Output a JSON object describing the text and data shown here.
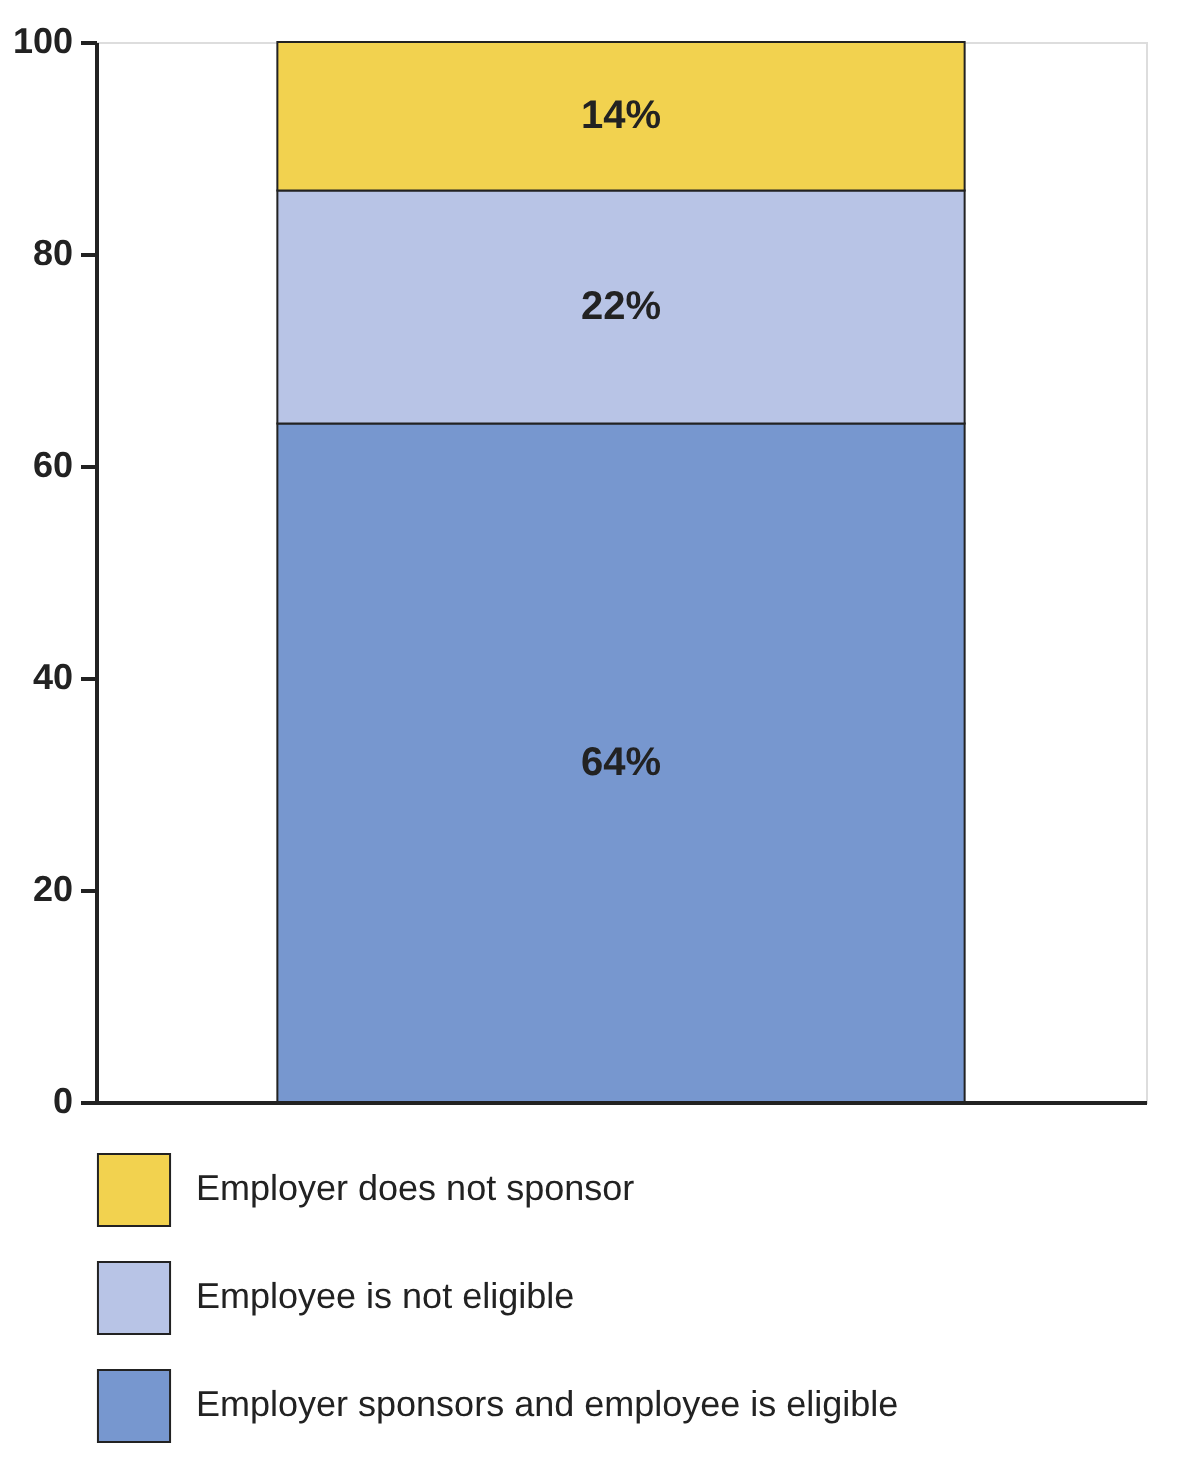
{
  "chart_data": {
    "type": "bar",
    "stacked": true,
    "categories": [
      null
    ],
    "series": [
      {
        "name": "Employer sponsors and employee is eligible",
        "color": "#7797cf",
        "values": [
          64
        ],
        "value_labels": [
          "64%"
        ]
      },
      {
        "name": "Employee is not eligible",
        "color": "#b8c4e6",
        "values": [
          22
        ],
        "value_labels": [
          "22%"
        ]
      },
      {
        "name": "Employer does not sponsor",
        "color": "#f2d24f",
        "values": [
          14
        ],
        "value_labels": [
          "14%"
        ]
      }
    ],
    "ylim": [
      0,
      100
    ],
    "yticks": [
      0,
      20,
      40,
      60,
      80,
      100
    ],
    "grid": false,
    "legend": "bottom"
  }
}
